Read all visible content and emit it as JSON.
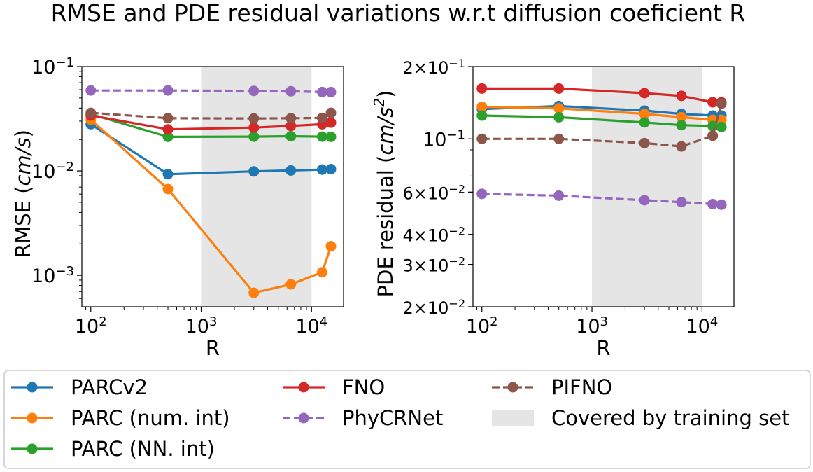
{
  "title": "RMSE and PDE residual variations w.r.t diffusion coeficient R",
  "colors": {
    "PARCv2": "#1f77b4",
    "PARC (num. int)": "#ff7f0e",
    "PARC (NN. int)": "#2ca02c",
    "FNO": "#d62728",
    "PhyCRNet": "#9467bd",
    "PIFNO": "#8c564b",
    "training": "#e5e5e5"
  },
  "legend": {
    "items": [
      {
        "label": "PARCv2",
        "key": "PARCv2",
        "dashed": false
      },
      {
        "label": "PARC (num. int)",
        "key": "PARC (num. int)",
        "dashed": false
      },
      {
        "label": "PARC (NN. int)",
        "key": "PARC (NN. int)",
        "dashed": false
      },
      {
        "label": "FNO",
        "key": "FNO",
        "dashed": false
      },
      {
        "label": "PhyCRNet",
        "key": "PhyCRNet",
        "dashed": true
      },
      {
        "label": "Covered by training set",
        "key": "training",
        "patch": true
      },
      {
        "label": "PIFNO",
        "key": "PIFNO",
        "dashed": true
      }
    ]
  },
  "chart_data": [
    {
      "type": "line",
      "xlabel": "R",
      "ylabel_prefix": "RMSE (",
      "ylabel_unit": "cm/s",
      "ylabel_suffix": ")",
      "xscale": "log",
      "yscale": "log",
      "xlim": [
        83,
        19500
      ],
      "ylim": [
        0.0005,
        0.1
      ],
      "shaded_region": [
        1000,
        10000
      ],
      "xticks": [
        {
          "base": "10",
          "exp": "2",
          "value": 100
        },
        {
          "base": "10",
          "exp": "3",
          "value": 1000
        },
        {
          "base": "10",
          "exp": "4",
          "value": 10000
        }
      ],
      "yticks": [
        {
          "base": "10",
          "exp": "−1",
          "value": 0.1
        },
        {
          "base": "10",
          "exp": "−2",
          "value": 0.01
        },
        {
          "base": "10",
          "exp": "−3",
          "value": 0.001
        }
      ],
      "series": [
        {
          "name": "PARCv2",
          "dashed": false,
          "x": [
            100,
            500,
            3000,
            6500,
            12500,
            15000
          ],
          "values": [
            0.028,
            0.0093,
            0.0099,
            0.0101,
            0.0103,
            0.0104
          ]
        },
        {
          "name": "PARC (num. int)",
          "dashed": false,
          "x": [
            100,
            500,
            3000,
            6500,
            12500,
            15000
          ],
          "values": [
            0.031,
            0.0067,
            0.00068,
            0.00082,
            0.00107,
            0.0019
          ]
        },
        {
          "name": "PARC (NN. int)",
          "dashed": false,
          "x": [
            100,
            500,
            3000,
            6500,
            12500,
            15000
          ],
          "values": [
            0.035,
            0.0212,
            0.0213,
            0.0215,
            0.0213,
            0.0212
          ]
        },
        {
          "name": "FNO",
          "dashed": false,
          "x": [
            100,
            500,
            3000,
            6500,
            12500,
            15000
          ],
          "values": [
            0.034,
            0.025,
            0.026,
            0.027,
            0.028,
            0.029
          ]
        },
        {
          "name": "PhyCRNet",
          "dashed": true,
          "x": [
            100,
            500,
            3000,
            6500,
            12500,
            15000
          ],
          "values": [
            0.059,
            0.059,
            0.0585,
            0.058,
            0.057,
            0.057
          ]
        },
        {
          "name": "PIFNO",
          "dashed": true,
          "x": [
            100,
            500,
            3000,
            6500,
            12500,
            15000
          ],
          "values": [
            0.036,
            0.032,
            0.0318,
            0.032,
            0.0322,
            0.036
          ]
        }
      ]
    },
    {
      "type": "line",
      "xlabel": "R",
      "ylabel_prefix": "PDE residual (",
      "ylabel_unit": "cm/s",
      "ylabel_sup": "2",
      "ylabel_suffix": ")",
      "xscale": "log",
      "yscale": "log",
      "xlim": [
        83,
        19500
      ],
      "ylim": [
        0.02,
        0.2
      ],
      "shaded_region": [
        1000,
        10000
      ],
      "xticks": [
        {
          "base": "10",
          "exp": "2",
          "value": 100
        },
        {
          "base": "10",
          "exp": "3",
          "value": 1000
        },
        {
          "base": "10",
          "exp": "4",
          "value": 10000
        }
      ],
      "yticks": [
        {
          "mant": "2×",
          "base": "10",
          "exp": "−1",
          "value": 0.2
        },
        {
          "mant": "",
          "base": "10",
          "exp": "−1",
          "value": 0.1
        },
        {
          "mant": "6×",
          "base": "10",
          "exp": "−2",
          "value": 0.06
        },
        {
          "mant": "4×",
          "base": "10",
          "exp": "−2",
          "value": 0.04
        },
        {
          "mant": "3×",
          "base": "10",
          "exp": "−2",
          "value": 0.03
        },
        {
          "mant": "2×",
          "base": "10",
          "exp": "−2",
          "value": 0.02
        }
      ],
      "series": [
        {
          "name": "PARCv2",
          "dashed": false,
          "x": [
            100,
            500,
            3000,
            6500,
            12500,
            15000
          ],
          "values": [
            0.133,
            0.137,
            0.131,
            0.127,
            0.125,
            0.125
          ]
        },
        {
          "name": "PARC (num. int)",
          "dashed": false,
          "x": [
            100,
            500,
            3000,
            6500,
            12500,
            15000
          ],
          "values": [
            0.136,
            0.134,
            0.127,
            0.123,
            0.12,
            0.12
          ]
        },
        {
          "name": "PARC (NN. int)",
          "dashed": false,
          "x": [
            100,
            500,
            3000,
            6500,
            12500,
            15000
          ],
          "values": [
            0.125,
            0.123,
            0.117,
            0.114,
            0.113,
            0.112
          ]
        },
        {
          "name": "FNO",
          "dashed": false,
          "x": [
            100,
            500,
            3000,
            6500,
            12500,
            15000
          ],
          "values": [
            0.162,
            0.162,
            0.155,
            0.151,
            0.142,
            0.142
          ]
        },
        {
          "name": "PhyCRNet",
          "dashed": true,
          "x": [
            100,
            500,
            3000,
            6500,
            12500,
            15000
          ],
          "values": [
            0.059,
            0.058,
            0.0555,
            0.0545,
            0.0535,
            0.0532
          ]
        },
        {
          "name": "PIFNO",
          "dashed": true,
          "x": [
            100,
            500,
            3000,
            6500,
            12500,
            15000
          ],
          "values": [
            0.1,
            0.1,
            0.096,
            0.093,
            0.103,
            0.14
          ]
        }
      ]
    }
  ]
}
